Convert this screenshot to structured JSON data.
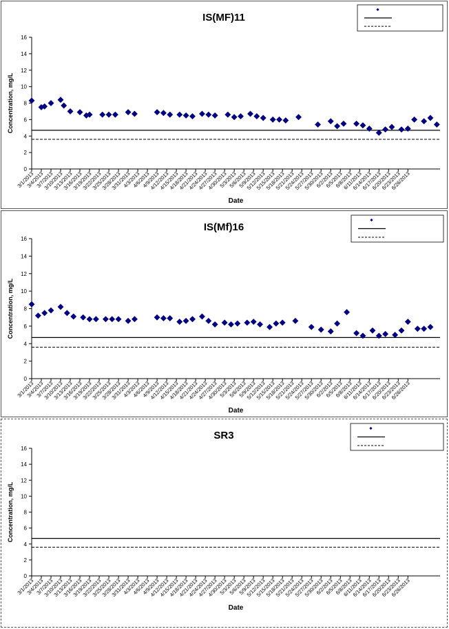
{
  "chart_data": [
    {
      "type": "scatter",
      "title": "IS(MF)11",
      "xlabel": "Date",
      "ylabel": "Concentration, mg/L",
      "ylim": [
        0,
        16
      ],
      "yticks": [
        0,
        2,
        4,
        6,
        8,
        10,
        12,
        14,
        16
      ],
      "x_tick_labels": [
        "3/1/2013",
        "3/4/2013",
        "3/7/2013",
        "3/10/2013",
        "3/13/2013",
        "3/16/2013",
        "3/19/2013",
        "3/22/2013",
        "3/25/2013",
        "3/28/2013",
        "3/31/2013",
        "4/3/2013",
        "4/6/2013",
        "4/9/2013",
        "4/12/2013",
        "4/15/2013",
        "4/18/2013",
        "4/21/2013",
        "4/24/2013",
        "4/27/2013",
        "4/30/2013",
        "5/3/2013",
        "5/6/2013",
        "5/9/2013",
        "5/12/2013",
        "5/15/2013",
        "5/18/2013",
        "5/21/2013",
        "5/24/2013",
        "5/27/2013",
        "5/30/2013",
        "6/2/2013",
        "6/5/2013",
        "6/8/2013",
        "6/11/2013",
        "6/14/2013",
        "6/17/2013",
        "6/20/2013",
        "6/23/2013",
        "6/26/2013"
      ],
      "grid": false,
      "legend_position": "top-right",
      "legend_labels": [
        "",
        "",
        ""
      ],
      "marker_color": "#000080",
      "series": [
        {
          "points": [
            [
              "3/1/2013",
              8.3
            ],
            [
              "3/4/2013",
              7.5
            ],
            [
              "3/5/2013",
              7.6
            ],
            [
              "3/7/2013",
              8.0
            ],
            [
              "3/10/2013",
              8.4
            ],
            [
              "3/11/2013",
              7.7
            ],
            [
              "3/13/2013",
              7.0
            ],
            [
              "3/16/2013",
              6.9
            ],
            [
              "3/18/2013",
              6.5
            ],
            [
              "3/19/2013",
              6.6
            ],
            [
              "3/23/2013",
              6.6
            ],
            [
              "3/25/2013",
              6.6
            ],
            [
              "3/27/2013",
              6.6
            ],
            [
              "3/31/2013",
              6.9
            ],
            [
              "4/2/2013",
              6.7
            ],
            [
              "4/9/2013",
              6.9
            ],
            [
              "4/11/2013",
              6.8
            ],
            [
              "4/13/2013",
              6.6
            ],
            [
              "4/16/2013",
              6.6
            ],
            [
              "4/18/2013",
              6.5
            ],
            [
              "4/20/2013",
              6.4
            ],
            [
              "4/23/2013",
              6.7
            ],
            [
              "4/25/2013",
              6.6
            ],
            [
              "4/27/2013",
              6.5
            ],
            [
              "5/1/2013",
              6.6
            ],
            [
              "5/3/2013",
              6.3
            ],
            [
              "5/5/2013",
              6.4
            ],
            [
              "5/8/2013",
              6.7
            ],
            [
              "5/10/2013",
              6.4
            ],
            [
              "5/12/2013",
              6.2
            ],
            [
              "5/15/2013",
              6.0
            ],
            [
              "5/17/2013",
              6.0
            ],
            [
              "5/19/2013",
              5.9
            ],
            [
              "5/23/2013",
              6.3
            ],
            [
              "5/29/2013",
              5.4
            ],
            [
              "6/2/2013",
              5.8
            ],
            [
              "6/4/2013",
              5.2
            ],
            [
              "6/6/2013",
              5.5
            ],
            [
              "6/10/2013",
              5.5
            ],
            [
              "6/12/2013",
              5.3
            ],
            [
              "6/14/2013",
              4.9
            ],
            [
              "6/17/2013",
              4.4
            ],
            [
              "6/19/2013",
              4.8
            ],
            [
              "6/21/2013",
              5.1
            ],
            [
              "6/24/2013",
              4.8
            ],
            [
              "6/26/2013",
              4.9
            ],
            [
              "6/28/2013",
              6.0
            ],
            [
              "7/1/2013",
              5.8
            ],
            [
              "7/3/2013",
              6.2
            ],
            [
              "7/5/2013",
              5.4
            ]
          ]
        }
      ],
      "reference_lines": [
        {
          "value": 4.7,
          "style": "solid"
        },
        {
          "value": 3.6,
          "style": "dashed"
        }
      ]
    },
    {
      "type": "scatter",
      "title": "IS(Mf)16",
      "xlabel": "Date",
      "ylabel": "Concentration, mg/L",
      "ylim": [
        0,
        16
      ],
      "yticks": [
        0,
        2,
        4,
        6,
        8,
        10,
        12,
        14,
        16
      ],
      "x_tick_labels": [
        "3/1/2013",
        "3/4/2013",
        "3/7/2013",
        "3/10/2013",
        "3/13/2013",
        "3/16/2013",
        "3/19/2013",
        "3/22/2013",
        "3/25/2013",
        "3/28/2013",
        "3/31/2013",
        "4/3/2013",
        "4/6/2013",
        "4/9/2013",
        "4/12/2013",
        "4/15/2013",
        "4/18/2013",
        "4/21/2013",
        "4/24/2013",
        "4/27/2013",
        "4/30/2013",
        "5/3/2013",
        "5/6/2013",
        "5/9/2013",
        "5/12/2013",
        "5/15/2013",
        "5/18/2013",
        "5/21/2013",
        "5/24/2013",
        "5/27/2013",
        "5/30/2013",
        "6/2/2013",
        "6/5/2013",
        "6/8/2013",
        "6/11/2013",
        "6/14/2013",
        "6/17/2013",
        "6/20/2013",
        "6/23/2013",
        "6/26/2013"
      ],
      "grid": false,
      "legend_position": "top-right",
      "legend_labels": [
        "",
        "",
        ""
      ],
      "marker_color": "#000080",
      "series": [
        {
          "points": [
            [
              "3/1/2013",
              8.5
            ],
            [
              "3/3/2013",
              7.2
            ],
            [
              "3/5/2013",
              7.5
            ],
            [
              "3/7/2013",
              7.8
            ],
            [
              "3/10/2013",
              8.2
            ],
            [
              "3/12/2013",
              7.5
            ],
            [
              "3/14/2013",
              7.1
            ],
            [
              "3/17/2013",
              7.0
            ],
            [
              "3/19/2013",
              6.8
            ],
            [
              "3/21/2013",
              6.8
            ],
            [
              "3/24/2013",
              6.8
            ],
            [
              "3/26/2013",
              6.8
            ],
            [
              "3/28/2013",
              6.8
            ],
            [
              "3/31/2013",
              6.6
            ],
            [
              "4/2/2013",
              6.8
            ],
            [
              "4/9/2013",
              7.0
            ],
            [
              "4/11/2013",
              6.9
            ],
            [
              "4/13/2013",
              6.9
            ],
            [
              "4/16/2013",
              6.5
            ],
            [
              "4/18/2013",
              6.6
            ],
            [
              "4/20/2013",
              6.8
            ],
            [
              "4/23/2013",
              7.1
            ],
            [
              "4/25/2013",
              6.6
            ],
            [
              "4/27/2013",
              6.2
            ],
            [
              "4/30/2013",
              6.4
            ],
            [
              "5/2/2013",
              6.2
            ],
            [
              "5/4/2013",
              6.3
            ],
            [
              "5/7/2013",
              6.4
            ],
            [
              "5/9/2013",
              6.5
            ],
            [
              "5/11/2013",
              6.2
            ],
            [
              "5/14/2013",
              5.9
            ],
            [
              "5/16/2013",
              6.3
            ],
            [
              "5/18/2013",
              6.4
            ],
            [
              "5/22/2013",
              6.6
            ],
            [
              "5/27/2013",
              5.9
            ],
            [
              "5/30/2013",
              5.6
            ],
            [
              "6/2/2013",
              5.4
            ],
            [
              "6/4/2013",
              6.3
            ],
            [
              "6/7/2013",
              7.6
            ],
            [
              "6/10/2013",
              5.2
            ],
            [
              "6/12/2013",
              4.9
            ],
            [
              "6/15/2013",
              5.5
            ],
            [
              "6/17/2013",
              4.9
            ],
            [
              "6/19/2013",
              5.1
            ],
            [
              "6/22/2013",
              5.0
            ],
            [
              "6/24/2013",
              5.5
            ],
            [
              "6/26/2013",
              6.5
            ],
            [
              "6/29/2013",
              5.7
            ],
            [
              "7/1/2013",
              5.7
            ],
            [
              "7/3/2013",
              5.9
            ]
          ]
        }
      ],
      "reference_lines": [
        {
          "value": 4.7,
          "style": "solid"
        },
        {
          "value": 3.6,
          "style": "dashed"
        }
      ]
    },
    {
      "type": "scatter",
      "title": "SR3",
      "xlabel": "Date",
      "ylabel": "Concentration, mg/L",
      "ylim": [
        0,
        16
      ],
      "yticks": [
        0,
        2,
        4,
        6,
        8,
        10,
        12,
        14,
        16
      ],
      "x_tick_labels": [
        "3/1/2013",
        "3/4/2013",
        "3/7/2013",
        "3/10/2013",
        "3/13/2013",
        "3/16/2013",
        "3/19/2013",
        "3/22/2013",
        "3/25/2013",
        "3/28/2013",
        "3/31/2013",
        "4/3/2013",
        "4/6/2013",
        "4/9/2013",
        "4/12/2013",
        "4/15/2013",
        "4/18/2013",
        "4/21/2013",
        "4/24/2013",
        "4/27/2013",
        "4/30/2013",
        "5/3/2013",
        "5/6/2013",
        "5/9/2013",
        "5/12/2013",
        "5/15/2013",
        "5/18/2013",
        "5/21/2013",
        "5/24/2013",
        "5/27/2013",
        "5/30/2013",
        "6/2/2013",
        "6/5/2013",
        "6/8/2013",
        "6/11/2013",
        "6/14/2013",
        "6/17/2013",
        "6/20/2013",
        "6/23/2013",
        "6/26/2013"
      ],
      "grid": false,
      "legend_position": "top-right",
      "legend_labels": [
        "",
        "",
        ""
      ],
      "marker_color": "#000080",
      "series": [
        {
          "points": []
        }
      ],
      "reference_lines": [
        {
          "value": 4.7,
          "style": "solid"
        },
        {
          "value": 3.6,
          "style": "dashed"
        }
      ]
    }
  ]
}
